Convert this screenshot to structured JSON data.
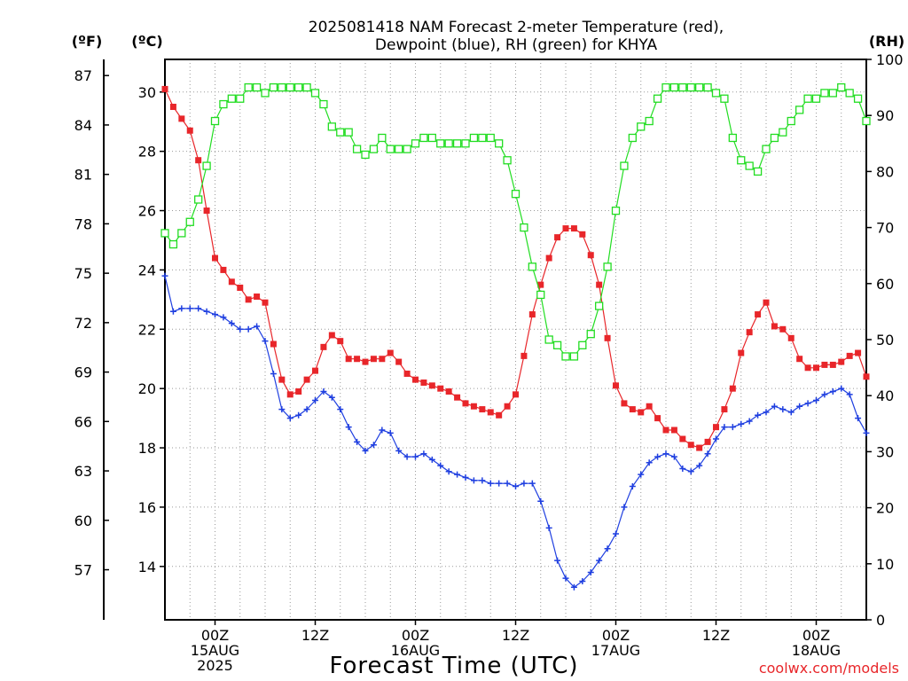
{
  "header": {
    "title_line1": "2025081418 NAM Forecast 2-meter Temperature (red),",
    "title_line2": "Dewpoint (blue), RH (green) for KHYA"
  },
  "units": {
    "fahrenheit": "(ºF)",
    "celsius": "(ºC)",
    "rh": "(RH)"
  },
  "footer": {
    "xlabel": "Forecast Time (UTC)",
    "credit": "coolwx.com/models"
  },
  "chart_data": {
    "type": "line",
    "title": "2025081418 NAM Forecast 2-meter Temperature (red), Dewpoint (blue), RH (green) for KHYA",
    "xlabel": "Forecast Time (UTC)",
    "x_unit": "hours since 2025-08-14 18Z",
    "x_range": [
      0,
      84
    ],
    "x_ticks": [
      {
        "x": 6,
        "lines": [
          "00Z",
          "15AUG",
          "2025"
        ]
      },
      {
        "x": 18,
        "lines": [
          "12Z"
        ]
      },
      {
        "x": 30,
        "lines": [
          "00Z",
          "16AUG"
        ]
      },
      {
        "x": 42,
        "lines": [
          "12Z"
        ]
      },
      {
        "x": 54,
        "lines": [
          "00Z",
          "17AUG"
        ]
      },
      {
        "x": 66,
        "lines": [
          "12Z"
        ]
      },
      {
        "x": 78,
        "lines": [
          "00Z",
          "18AUG"
        ]
      }
    ],
    "y_left": {
      "label": "(ºC)",
      "range": [
        12.2,
        31.1
      ],
      "ticks": [
        14,
        16,
        18,
        20,
        22,
        24,
        26,
        28,
        30
      ]
    },
    "y_far_left": {
      "label": "(ºF)",
      "ticks": [
        57,
        60,
        63,
        66,
        69,
        72,
        75,
        78,
        81,
        84,
        87
      ]
    },
    "y_right": {
      "label": "(RH)",
      "range": [
        0,
        100
      ],
      "ticks": [
        0,
        10,
        20,
        30,
        40,
        50,
        60,
        70,
        80,
        90,
        100
      ]
    },
    "grid": true,
    "series": [
      {
        "name": "Temperature",
        "color": "#e8262a",
        "marker": "filled-square",
        "axis": "celsius",
        "x": [
          0,
          1,
          2,
          3,
          4,
          5,
          6,
          7,
          8,
          9,
          10,
          11,
          12,
          13,
          14,
          15,
          16,
          17,
          18,
          19,
          20,
          21,
          22,
          23,
          24,
          25,
          26,
          27,
          28,
          29,
          30,
          31,
          32,
          33,
          34,
          35,
          36,
          37,
          38,
          39,
          40,
          41,
          42,
          43,
          44,
          45,
          46,
          47,
          48,
          49,
          50,
          51,
          52,
          53,
          54,
          55,
          56,
          57,
          58,
          59,
          60,
          61,
          62,
          63,
          64,
          65,
          66,
          67,
          68,
          69,
          70,
          71,
          72,
          73,
          74,
          75,
          76,
          77,
          78,
          79,
          80,
          81,
          82,
          83,
          84
        ],
        "values": [
          30.1,
          29.5,
          29.1,
          28.7,
          27.7,
          26.0,
          24.4,
          24.0,
          23.6,
          23.4,
          23.0,
          23.1,
          22.9,
          21.5,
          20.3,
          19.8,
          19.9,
          20.3,
          20.6,
          21.4,
          21.8,
          21.6,
          21.0,
          21.0,
          20.9,
          21.0,
          21.0,
          21.2,
          20.9,
          20.5,
          20.3,
          20.2,
          20.1,
          20.0,
          19.9,
          19.7,
          19.5,
          19.4,
          19.3,
          19.2,
          19.1,
          19.4,
          19.8,
          21.1,
          22.5,
          23.5,
          24.4,
          25.1,
          25.4,
          25.4,
          25.2,
          24.5,
          23.5,
          21.7,
          20.1,
          19.5,
          19.3,
          19.2,
          19.4,
          19.0,
          18.6,
          18.6,
          18.3,
          18.1,
          18.0,
          18.2,
          18.7,
          19.3,
          20.0,
          21.2,
          21.9,
          22.5,
          22.9,
          22.1,
          22.0,
          21.7,
          21.0,
          20.7,
          20.7,
          20.8,
          20.8,
          20.9,
          21.1,
          21.2,
          20.4
        ]
      },
      {
        "name": "Dewpoint",
        "color": "#1f3fe0",
        "marker": "plus",
        "axis": "celsius",
        "x": [
          0,
          1,
          2,
          3,
          4,
          5,
          6,
          7,
          8,
          9,
          10,
          11,
          12,
          13,
          14,
          15,
          16,
          17,
          18,
          19,
          20,
          21,
          22,
          23,
          24,
          25,
          26,
          27,
          28,
          29,
          30,
          31,
          32,
          33,
          34,
          35,
          36,
          37,
          38,
          39,
          40,
          41,
          42,
          43,
          44,
          45,
          46,
          47,
          48,
          49,
          50,
          51,
          52,
          53,
          54,
          55,
          56,
          57,
          58,
          59,
          60,
          61,
          62,
          63,
          64,
          65,
          66,
          67,
          68,
          69,
          70,
          71,
          72,
          73,
          74,
          75,
          76,
          77,
          78,
          79,
          80,
          81,
          82,
          83,
          84
        ],
        "values": [
          23.8,
          22.6,
          22.7,
          22.7,
          22.7,
          22.6,
          22.5,
          22.4,
          22.2,
          22.0,
          22.0,
          22.1,
          21.6,
          20.5,
          19.3,
          19.0,
          19.1,
          19.3,
          19.6,
          19.9,
          19.7,
          19.3,
          18.7,
          18.2,
          17.9,
          18.1,
          18.6,
          18.5,
          17.9,
          17.7,
          17.7,
          17.8,
          17.6,
          17.4,
          17.2,
          17.1,
          17.0,
          16.9,
          16.9,
          16.8,
          16.8,
          16.8,
          16.7,
          16.8,
          16.8,
          16.2,
          15.3,
          14.2,
          13.6,
          13.3,
          13.5,
          13.8,
          14.2,
          14.6,
          15.1,
          16.0,
          16.7,
          17.1,
          17.5,
          17.7,
          17.8,
          17.7,
          17.3,
          17.2,
          17.4,
          17.8,
          18.3,
          18.7,
          18.7,
          18.8,
          18.9,
          19.1,
          19.2,
          19.4,
          19.3,
          19.2,
          19.4,
          19.5,
          19.6,
          19.8,
          19.9,
          20.0,
          19.8,
          19.0,
          18.5
        ]
      },
      {
        "name": "RH",
        "color": "#22dd22",
        "marker": "open-square",
        "axis": "rh",
        "x": [
          0,
          1,
          2,
          3,
          4,
          5,
          6,
          7,
          8,
          9,
          10,
          11,
          12,
          13,
          14,
          15,
          16,
          17,
          18,
          19,
          20,
          21,
          22,
          23,
          24,
          25,
          26,
          27,
          28,
          29,
          30,
          31,
          32,
          33,
          34,
          35,
          36,
          37,
          38,
          39,
          40,
          41,
          42,
          43,
          44,
          45,
          46,
          47,
          48,
          49,
          50,
          51,
          52,
          53,
          54,
          55,
          56,
          57,
          58,
          59,
          60,
          61,
          62,
          63,
          64,
          65,
          66,
          67,
          68,
          69,
          70,
          71,
          72,
          73,
          74,
          75,
          76,
          77,
          78,
          79,
          80,
          81,
          82,
          83,
          84
        ],
        "values": [
          69,
          67,
          69,
          71,
          75,
          81,
          89,
          92,
          93,
          93,
          95,
          95,
          94,
          95,
          95,
          95,
          95,
          95,
          94,
          92,
          88,
          87,
          87,
          84,
          83,
          84,
          86,
          84,
          84,
          84,
          85,
          86,
          86,
          85,
          85,
          85,
          85,
          86,
          86,
          86,
          85,
          82,
          76,
          70,
          63,
          58,
          50,
          49,
          47,
          47,
          49,
          51,
          56,
          63,
          73,
          81,
          86,
          88,
          89,
          93,
          95,
          95,
          95,
          95,
          95,
          95,
          94,
          93,
          86,
          82,
          81,
          80,
          84,
          86,
          87,
          89,
          91,
          93,
          93,
          94,
          94,
          95,
          94,
          93,
          89
        ]
      }
    ]
  }
}
